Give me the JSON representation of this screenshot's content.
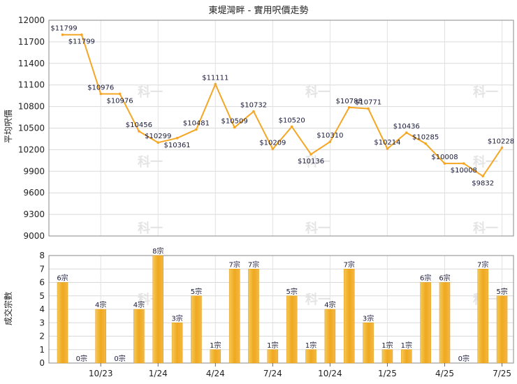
{
  "chart_data": [
    {
      "type": "line",
      "title": "東堤灣畔 - 實用呎價走勢",
      "ylabel": "平均呎價",
      "ylim": [
        9000,
        12000
      ],
      "yticks": [
        9000,
        9300,
        9600,
        9900,
        10200,
        10500,
        10800,
        11100,
        11400,
        11700,
        12000
      ],
      "color": "#f5a623",
      "series": [
        {
          "values": [
            11799,
            11799,
            10976,
            10976,
            10456,
            10299,
            10361,
            10481,
            11111,
            10509,
            10732,
            10209,
            10520,
            10136,
            10310,
            10788,
            10771,
            10214,
            10436,
            10285,
            10008,
            10008,
            9832,
            10228
          ],
          "labels": [
            "$11799",
            "$11799",
            "$10976",
            "$10976",
            "$10456",
            "$10299",
            "$10361",
            "$10481",
            "$11111",
            "$10509",
            "$10732",
            "$10209",
            "$10520",
            "$10136",
            "$10310",
            "$10788",
            "$10771",
            "$10214",
            "$10436",
            "$10285",
            "$10008",
            "$10008",
            "$9832",
            "$10228"
          ]
        }
      ]
    },
    {
      "type": "bar",
      "ylabel": "成交宗數",
      "ylim": [
        0,
        8
      ],
      "yticks": [
        0,
        1,
        2,
        3,
        4,
        5,
        6,
        7,
        8
      ],
      "color": "#f0a81e",
      "values": [
        6,
        0,
        4,
        0,
        4,
        8,
        3,
        5,
        1,
        7,
        7,
        1,
        5,
        1,
        4,
        7,
        3,
        1,
        1,
        6,
        6,
        0,
        7,
        5
      ],
      "labels": [
        "6宗",
        "0宗",
        "4宗",
        "0宗",
        "4宗",
        "8宗",
        "3宗",
        "5宗",
        "1宗",
        "7宗",
        "7宗",
        "1宗",
        "5宗",
        "1宗",
        "4宗",
        "7宗",
        "3宗",
        "1宗",
        "1宗",
        "6宗",
        "6宗",
        "0宗",
        "7宗",
        "5宗"
      ],
      "x_ticks": [
        "10/23",
        "1/24",
        "4/24",
        "7/24",
        "10/24",
        "1/25",
        "4/25",
        "7/25"
      ]
    }
  ],
  "watermark": "科一"
}
